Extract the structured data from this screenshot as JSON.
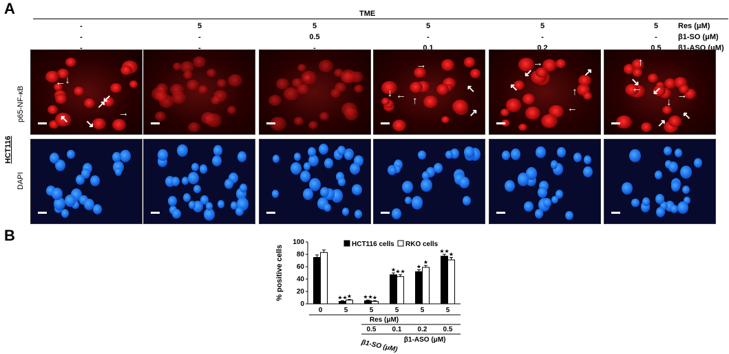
{
  "figure": {
    "panel_a_label": "A",
    "panel_b_label": "B",
    "tme_label": "TME",
    "row_labels": {
      "res": "Res (μM)",
      "so": "β1-SO (μM)",
      "aso": "β1-ASO (μM)"
    },
    "columns": [
      {
        "res": "-",
        "so": "-",
        "aso": "-"
      },
      {
        "res": "5",
        "so": "-",
        "aso": "-"
      },
      {
        "res": "5",
        "so": "0.5",
        "aso": "-"
      },
      {
        "res": "5",
        "so": "-",
        "aso": "0.1"
      },
      {
        "res": "5",
        "so": "-",
        "aso": "0.2"
      },
      {
        "res": "5",
        "so": "-",
        "aso": "0.5"
      }
    ],
    "cell_line_label": "HCT116",
    "stain_labels": {
      "red": "p65-NF-κB",
      "blue": "DAPI"
    }
  },
  "chart_data": {
    "type": "bar",
    "ylabel": "% positive cells",
    "ylim": [
      0,
      100
    ],
    "yticks": [
      0,
      20,
      40,
      60,
      80,
      100
    ],
    "series": [
      {
        "name": "HCT116 cells",
        "color": "#000000",
        "values": [
          75,
          4,
          5,
          47,
          52,
          77
        ],
        "errors": [
          4,
          1,
          1,
          3,
          3,
          3
        ]
      },
      {
        "name": "RKO cells",
        "color": "#ffffff",
        "values": [
          83,
          6,
          4,
          44,
          59,
          71
        ],
        "errors": [
          4,
          1,
          1,
          3,
          3,
          4
        ]
      }
    ],
    "significance": [
      [
        "",
        ""
      ],
      [
        "★★",
        "★"
      ],
      [
        "★★",
        "★"
      ],
      [
        "★",
        "★★"
      ],
      [
        "★",
        "★"
      ],
      [
        "★★",
        "★"
      ]
    ],
    "x_rows": {
      "res": [
        "0",
        "5",
        "5",
        "5",
        "5",
        "5"
      ],
      "res_label": "Res (μM)",
      "conc": [
        "",
        "",
        "0.5",
        "0.1",
        "0.2",
        "0.5"
      ],
      "so_label": "β1-SO (μM)",
      "aso_label": "β1-ASO (μM)"
    },
    "legend": "top-right"
  }
}
